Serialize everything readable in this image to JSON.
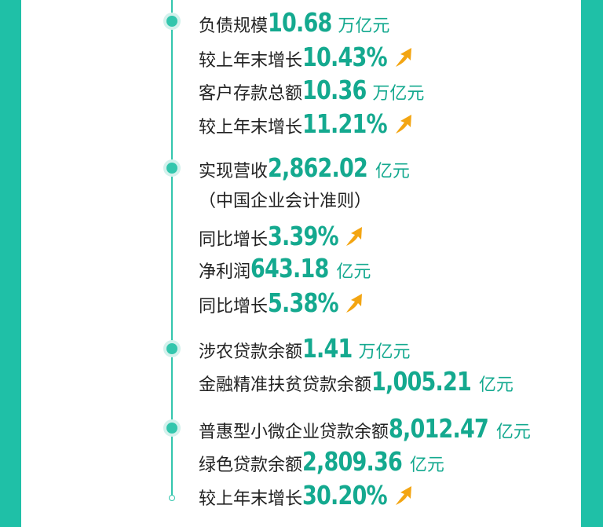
{
  "colors": {
    "accent": "#14a98f",
    "frame": "#1fc0a7",
    "arrow": "#f3a512"
  },
  "rows": [
    {
      "label": "负债规模",
      "value": "10.68",
      "unit": "万亿元"
    },
    {
      "label": "较上年末增长",
      "value": "10.43%",
      "arrow": "up-arrow-icon"
    },
    {
      "label": "客户存款总额",
      "value": "10.36",
      "unit": "万亿元"
    },
    {
      "label": "较上年末增长",
      "value": "11.21%",
      "arrow": "up-arrow-icon"
    },
    {
      "label": "实现营收",
      "value": "2,862.02",
      "unit": "亿元"
    },
    {
      "label": "（中国企业会计准则）"
    },
    {
      "label": "同比增长",
      "value": "3.39%",
      "arrow": "up-arrow-icon"
    },
    {
      "label": "净利润",
      "value": "643.18",
      "unit": "亿元"
    },
    {
      "label": "同比增长",
      "value": "5.38%",
      "arrow": "up-arrow-icon"
    },
    {
      "label": "涉农贷款余额",
      "value": "1.41",
      "unit": "万亿元"
    },
    {
      "label": "金融精准扶贫贷款余额",
      "value": "1,005.21",
      "unit": "亿元"
    },
    {
      "label": "普惠型小微企业贷款余额",
      "value": "8,012.47",
      "unit": "亿元"
    },
    {
      "label": "绿色贷款余额",
      "value": "2,809.36",
      "unit": "亿元"
    },
    {
      "label": "较上年末增长",
      "value": "30.20%",
      "arrow": "up-arrow-icon"
    }
  ]
}
